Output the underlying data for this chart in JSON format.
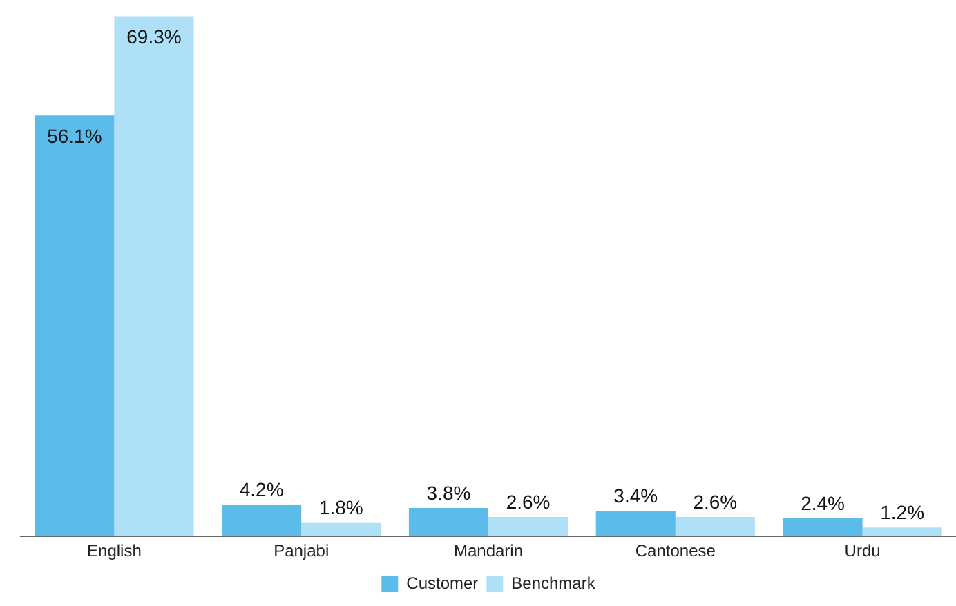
{
  "chart_data": {
    "type": "bar",
    "categories": [
      "English",
      "Panjabi",
      "Mandarin",
      "Cantonese",
      "Urdu"
    ],
    "series": [
      {
        "name": "Customer",
        "color": "#5bbcea",
        "values": [
          56.1,
          4.2,
          3.8,
          3.4,
          2.4
        ],
        "value_labels": [
          "56.1%",
          "4.2%",
          "3.8%",
          "3.4%",
          "2.4%"
        ]
      },
      {
        "name": "Benchmark",
        "color": "#aee0f7",
        "values": [
          69.3,
          1.8,
          2.6,
          2.6,
          1.2
        ],
        "value_labels": [
          "69.3%",
          "1.8%",
          "2.6%",
          "2.6%",
          "1.2%"
        ]
      }
    ],
    "legend": "bottom",
    "grid": false
  }
}
